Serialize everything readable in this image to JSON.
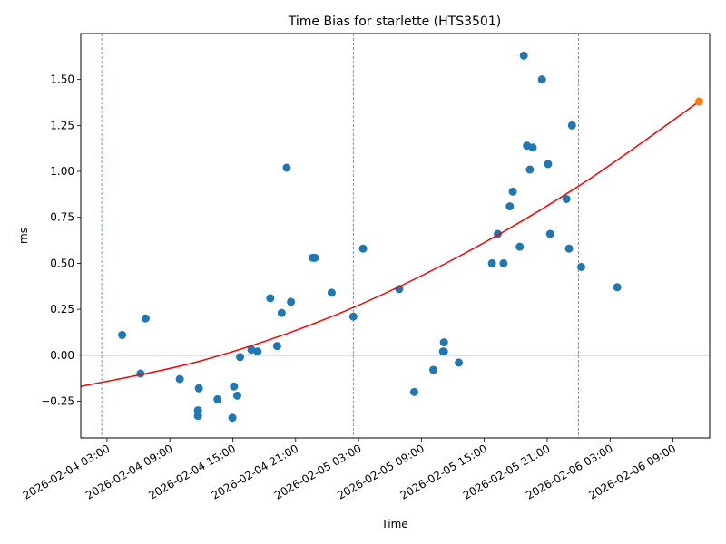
{
  "chart_data": {
    "type": "scatter",
    "title": "Time Bias for starlette (HTS3501)",
    "xlabel": "Time",
    "ylabel": "ms",
    "x_axis_type": "datetime",
    "xlim": [
      "2026-02-04 00:30",
      "2026-02-06 12:30"
    ],
    "ylim": [
      -0.45,
      1.75
    ],
    "x_ticks": [
      "2026-02-04 03:00",
      "2026-02-04 09:00",
      "2026-02-04 15:00",
      "2026-02-04 21:00",
      "2026-02-05 03:00",
      "2026-02-05 09:00",
      "2026-02-05 15:00",
      "2026-02-05 21:00",
      "2026-02-06 03:00",
      "2026-02-06 09:00"
    ],
    "y_ticks": [
      "−0.25",
      "0.00",
      "0.25",
      "0.50",
      "0.75",
      "1.00",
      "1.25",
      "1.50"
    ],
    "y_tick_values": [
      -0.25,
      0,
      0.25,
      0.5,
      0.75,
      1.0,
      1.25,
      1.5
    ],
    "grid": false,
    "point_color": "#1f77b4",
    "fit_color": "#ff0000",
    "last_point_color": "#ff7f0e",
    "reference_line": {
      "y": 0,
      "color": "#000000"
    },
    "vertical_lines": {
      "x": [
        "2026-02-04 02:30",
        "2026-02-05 02:30",
        "2026-02-06 00:00"
      ],
      "color": "#1f77b4",
      "style": "dashed"
    },
    "series": [
      {
        "type": "scatter",
        "points": [
          {
            "x": "2026-02-04 04:27",
            "y": 0.11
          },
          {
            "x": "2026-02-04 06:12",
            "y": -0.1
          },
          {
            "x": "2026-02-04 06:41",
            "y": 0.2
          },
          {
            "x": "2026-02-04 09:57",
            "y": -0.13
          },
          {
            "x": "2026-02-04 11:41",
            "y": -0.3
          },
          {
            "x": "2026-02-04 11:41",
            "y": -0.33
          },
          {
            "x": "2026-02-04 11:46",
            "y": -0.18
          },
          {
            "x": "2026-02-04 13:33",
            "y": -0.24
          },
          {
            "x": "2026-02-04 14:58",
            "y": -0.34
          },
          {
            "x": "2026-02-04 15:07",
            "y": -0.17
          },
          {
            "x": "2026-02-04 15:26",
            "y": -0.22
          },
          {
            "x": "2026-02-04 15:42",
            "y": -0.01
          },
          {
            "x": "2026-02-04 16:47",
            "y": 0.03
          },
          {
            "x": "2026-02-04 17:22",
            "y": 0.02
          },
          {
            "x": "2026-02-04 18:35",
            "y": 0.31
          },
          {
            "x": "2026-02-04 19:14",
            "y": 0.05
          },
          {
            "x": "2026-02-04 19:40",
            "y": 0.23
          },
          {
            "x": "2026-02-04 20:09",
            "y": 1.02
          },
          {
            "x": "2026-02-04 20:33",
            "y": 0.29
          },
          {
            "x": "2026-02-04 22:38",
            "y": 0.53
          },
          {
            "x": "2026-02-04 22:50",
            "y": 0.53
          },
          {
            "x": "2026-02-05 00:26",
            "y": 0.34
          },
          {
            "x": "2026-02-05 02:30",
            "y": 0.21
          },
          {
            "x": "2026-02-05 03:26",
            "y": 0.58
          },
          {
            "x": "2026-02-05 06:53",
            "y": 0.36
          },
          {
            "x": "2026-02-05 08:19",
            "y": -0.2
          },
          {
            "x": "2026-02-05 10:08",
            "y": -0.08
          },
          {
            "x": "2026-02-05 11:09",
            "y": 0.07
          },
          {
            "x": "2026-02-05 11:09",
            "y": 0.02
          },
          {
            "x": "2026-02-05 11:04",
            "y": 0.02
          },
          {
            "x": "2026-02-05 12:34",
            "y": -0.04
          },
          {
            "x": "2026-02-05 15:44",
            "y": 0.5
          },
          {
            "x": "2026-02-05 16:17",
            "y": 0.66
          },
          {
            "x": "2026-02-05 16:50",
            "y": 0.5
          },
          {
            "x": "2026-02-05 17:26",
            "y": 0.81
          },
          {
            "x": "2026-02-05 17:43",
            "y": 0.89
          },
          {
            "x": "2026-02-05 18:23",
            "y": 0.59
          },
          {
            "x": "2026-02-05 18:46",
            "y": 1.63
          },
          {
            "x": "2026-02-05 19:04",
            "y": 1.14
          },
          {
            "x": "2026-02-05 19:21",
            "y": 1.01
          },
          {
            "x": "2026-02-05 19:37",
            "y": 1.13
          },
          {
            "x": "2026-02-05 20:30",
            "y": 1.5
          },
          {
            "x": "2026-02-05 21:05",
            "y": 1.04
          },
          {
            "x": "2026-02-05 21:17",
            "y": 0.66
          },
          {
            "x": "2026-02-05 22:50",
            "y": 0.85
          },
          {
            "x": "2026-02-05 23:05",
            "y": 0.58
          },
          {
            "x": "2026-02-05 23:22",
            "y": 1.25
          },
          {
            "x": "2026-02-06 00:15",
            "y": 0.48
          },
          {
            "x": "2026-02-06 03:41",
            "y": 0.37
          }
        ]
      },
      {
        "type": "line",
        "fit": "quadratic",
        "points": [
          {
            "x": "2026-02-04 00:30",
            "y": -0.17
          },
          {
            "x": "2026-02-04 12:00",
            "y": -0.03
          },
          {
            "x": "2026-02-05 00:00",
            "y": 0.2
          },
          {
            "x": "2026-02-05 12:00",
            "y": 0.52
          },
          {
            "x": "2026-02-06 00:00",
            "y": 0.92
          },
          {
            "x": "2026-02-06 11:30",
            "y": 1.38
          }
        ]
      },
      {
        "type": "scatter",
        "points": [
          {
            "x": "2026-02-06 11:30",
            "y": 1.38
          }
        ]
      }
    ]
  }
}
